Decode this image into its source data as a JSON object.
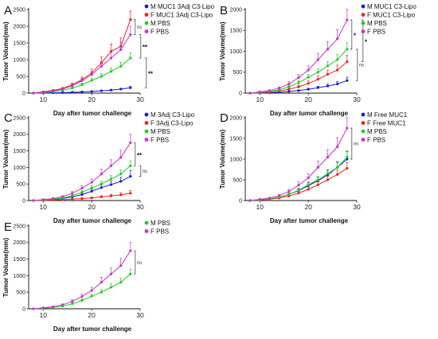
{
  "figure": {
    "colors": {
      "blue": "#1a1adf",
      "red": "#ee2222",
      "green": "#22cc22",
      "magenta": "#cc33cc"
    }
  },
  "chart_data": [
    {
      "type": "line",
      "panel_label": "A",
      "xlabel": "Day after tumor challenge",
      "ylabel": "Tumor Volume(mm)",
      "x_tick_labels": [
        "10",
        "20",
        "30"
      ],
      "y_tick_labels": [
        "0",
        "500",
        "1000",
        "1500",
        "2000",
        "2500"
      ],
      "xlim": [
        7,
        30
      ],
      "ylim": [
        0,
        2500
      ],
      "x": [
        8,
        10,
        12,
        14,
        16,
        18,
        20,
        22,
        24,
        26,
        28
      ],
      "legend_position": "top-right",
      "series": [
        {
          "name": "M MUC1 3Adj C3-Lipo",
          "color": "#1a1adf",
          "values": [
            0,
            5,
            10,
            15,
            25,
            35,
            50,
            70,
            90,
            120,
            160
          ],
          "errors": [
            0,
            3,
            5,
            6,
            8,
            10,
            12,
            15,
            18,
            25,
            40
          ]
        },
        {
          "name": "F MUC1 3Adj C3-Lipo",
          "color": "#ee2222",
          "values": [
            0,
            40,
            80,
            140,
            250,
            400,
            600,
            900,
            1250,
            1400,
            2200
          ],
          "errors": [
            0,
            10,
            20,
            30,
            50,
            80,
            120,
            180,
            220,
            250,
            250
          ]
        },
        {
          "name": "M PBS",
          "color": "#22cc22",
          "values": [
            0,
            20,
            40,
            80,
            150,
            250,
            380,
            500,
            650,
            800,
            1050
          ],
          "errors": [
            0,
            5,
            10,
            20,
            30,
            50,
            70,
            80,
            100,
            120,
            150
          ]
        },
        {
          "name": "F PBS",
          "color": "#cc33cc",
          "values": [
            0,
            30,
            60,
            120,
            220,
            370,
            550,
            800,
            1050,
            1300,
            1750
          ],
          "errors": [
            0,
            8,
            15,
            25,
            50,
            80,
            100,
            150,
            180,
            220,
            250
          ]
        }
      ],
      "significance": [
        {
          "label": "ns",
          "y": [
            2200,
            1750
          ]
        },
        {
          "label": "**",
          "y": [
            1750,
            1050
          ]
        },
        {
          "label": "**",
          "y": [
            1050,
            160
          ]
        }
      ]
    },
    {
      "type": "line",
      "panel_label": "B",
      "xlabel": "Day after tumor challenge",
      "ylabel": "Tumor Volume(mm)",
      "x_tick_labels": [
        "10",
        "20",
        "30"
      ],
      "y_tick_labels": [
        "0",
        "500",
        "1000",
        "1500",
        "2000"
      ],
      "xlim": [
        7,
        30
      ],
      "ylim": [
        0,
        2000
      ],
      "x": [
        8,
        10,
        12,
        14,
        16,
        18,
        20,
        22,
        24,
        26,
        28
      ],
      "legend_position": "top-right",
      "series": [
        {
          "name": "M MUC1 C3-Lipo",
          "color": "#1a1adf",
          "values": [
            0,
            5,
            10,
            20,
            40,
            60,
            90,
            130,
            170,
            220,
            300
          ],
          "errors": [
            0,
            3,
            5,
            8,
            12,
            18,
            25,
            35,
            45,
            60,
            80
          ]
        },
        {
          "name": "F MUC1 C3-Lipo",
          "color": "#ee2222",
          "values": [
            0,
            10,
            25,
            50,
            90,
            150,
            230,
            330,
            450,
            550,
            750
          ],
          "errors": [
            0,
            5,
            8,
            15,
            25,
            40,
            60,
            80,
            100,
            120,
            150
          ]
        },
        {
          "name": "M PBS",
          "color": "#22cc22",
          "values": [
            0,
            20,
            40,
            80,
            150,
            250,
            380,
            500,
            650,
            800,
            1050
          ],
          "errors": [
            0,
            5,
            10,
            20,
            30,
            50,
            70,
            80,
            100,
            120,
            150
          ]
        },
        {
          "name": "F PBS",
          "color": "#cc33cc",
          "values": [
            0,
            30,
            60,
            120,
            220,
            370,
            550,
            800,
            1050,
            1300,
            1750
          ],
          "errors": [
            0,
            8,
            15,
            25,
            50,
            80,
            100,
            150,
            180,
            220,
            250
          ]
        }
      ],
      "significance": [
        {
          "label": "*",
          "y": [
            1750,
            1050
          ]
        },
        {
          "label": "ns",
          "y": [
            1050,
            300
          ]
        },
        {
          "label": "*",
          "y": [
            1750,
            750
          ]
        }
      ]
    },
    {
      "type": "line",
      "panel_label": "C",
      "xlabel": "Day after tumor challenge",
      "ylabel": "Tumor Volume(mm)",
      "x_tick_labels": [
        "10",
        "20",
        "30"
      ],
      "y_tick_labels": [
        "0",
        "500",
        "1000",
        "1500",
        "2000",
        "2500"
      ],
      "xlim": [
        7,
        30
      ],
      "ylim": [
        0,
        2500
      ],
      "x": [
        8,
        10,
        12,
        14,
        16,
        18,
        20,
        22,
        24,
        26,
        28
      ],
      "legend_position": "top-right",
      "series": [
        {
          "name": "M 3Adj C3-Lipo",
          "color": "#1a1adf",
          "values": [
            0,
            15,
            30,
            60,
            110,
            180,
            280,
            390,
            480,
            580,
            730
          ],
          "errors": [
            0,
            5,
            10,
            15,
            25,
            40,
            60,
            80,
            100,
            120,
            180
          ]
        },
        {
          "name": "F 3Adj C3-Lipo",
          "color": "#ee2222",
          "values": [
            0,
            5,
            15,
            25,
            40,
            60,
            80,
            110,
            140,
            170,
            220
          ],
          "errors": [
            0,
            3,
            5,
            8,
            12,
            18,
            25,
            35,
            45,
            55,
            80
          ]
        },
        {
          "name": "M PBS",
          "color": "#22cc22",
          "values": [
            0,
            20,
            40,
            80,
            150,
            250,
            380,
            500,
            650,
            800,
            1050
          ],
          "errors": [
            0,
            5,
            10,
            20,
            30,
            50,
            70,
            80,
            100,
            120,
            150
          ]
        },
        {
          "name": "F PBS",
          "color": "#cc33cc",
          "values": [
            0,
            30,
            60,
            120,
            220,
            370,
            550,
            800,
            1050,
            1300,
            1750
          ],
          "errors": [
            0,
            8,
            15,
            25,
            50,
            80,
            100,
            150,
            180,
            220,
            250
          ]
        }
      ],
      "significance": [
        {
          "label": "**",
          "y": [
            1750,
            1050
          ]
        },
        {
          "label": "ns",
          "y": [
            1050,
            730
          ]
        }
      ]
    },
    {
      "type": "line",
      "panel_label": "D",
      "xlabel": "Day after tumor challenge",
      "ylabel": "Tumor Volume(mm)",
      "x_tick_labels": [
        "10",
        "20",
        "30"
      ],
      "y_tick_labels": [
        "0",
        "500",
        "1000",
        "1500",
        "2000"
      ],
      "xlim": [
        7,
        30
      ],
      "ylim": [
        0,
        2000
      ],
      "x": [
        8,
        10,
        12,
        14,
        16,
        18,
        20,
        22,
        24,
        26,
        28
      ],
      "legend_position": "top-right",
      "series": [
        {
          "name": "M Free MUC1",
          "color": "#1a1adf",
          "values": [
            0,
            20,
            40,
            80,
            150,
            240,
            360,
            480,
            620,
            800,
            1000
          ],
          "errors": [
            0,
            5,
            10,
            20,
            30,
            50,
            70,
            90,
            110,
            140,
            180
          ]
        },
        {
          "name": "F Free MUC1",
          "color": "#ee2222",
          "values": [
            0,
            15,
            30,
            60,
            110,
            180,
            270,
            380,
            500,
            630,
            780
          ],
          "errors": [
            0,
            5,
            10,
            15,
            25,
            40,
            55,
            70,
            90,
            110,
            140
          ]
        },
        {
          "name": "M PBS",
          "color": "#22cc22",
          "values": [
            0,
            20,
            40,
            80,
            150,
            250,
            380,
            500,
            650,
            800,
            1050
          ],
          "errors": [
            0,
            5,
            10,
            20,
            30,
            50,
            70,
            80,
            100,
            120,
            150
          ]
        },
        {
          "name": "F PBS",
          "color": "#cc33cc",
          "values": [
            0,
            30,
            60,
            120,
            220,
            370,
            550,
            800,
            1050,
            1300,
            1750
          ],
          "errors": [
            0,
            8,
            15,
            25,
            50,
            80,
            100,
            150,
            180,
            220,
            250
          ]
        }
      ],
      "significance": [
        {
          "label": "ns",
          "y": [
            1750,
            1000
          ]
        }
      ]
    },
    {
      "type": "line",
      "panel_label": "E",
      "xlabel": "Day after tumor challenge",
      "ylabel": "Tumor Volume(mm)",
      "x_tick_labels": [
        "10",
        "20",
        "30"
      ],
      "y_tick_labels": [
        "0",
        "500",
        "1000",
        "1500",
        "2000",
        "2500"
      ],
      "xlim": [
        7,
        30
      ],
      "ylim": [
        0,
        2500
      ],
      "x": [
        8,
        10,
        12,
        14,
        16,
        18,
        20,
        22,
        24,
        26,
        28
      ],
      "legend_position": "top-right",
      "series": [
        {
          "name": "M PBS",
          "color": "#22cc22",
          "values": [
            0,
            20,
            40,
            80,
            150,
            250,
            380,
            500,
            650,
            800,
            1050
          ],
          "errors": [
            0,
            5,
            10,
            20,
            30,
            50,
            70,
            80,
            100,
            120,
            150
          ]
        },
        {
          "name": "F PBS",
          "color": "#cc33cc",
          "values": [
            0,
            30,
            60,
            120,
            220,
            370,
            550,
            800,
            1050,
            1300,
            1750
          ],
          "errors": [
            0,
            8,
            15,
            25,
            50,
            80,
            100,
            150,
            180,
            220,
            250
          ]
        }
      ],
      "significance": [
        {
          "label": "ns",
          "y": [
            1750,
            1050
          ]
        }
      ]
    }
  ]
}
